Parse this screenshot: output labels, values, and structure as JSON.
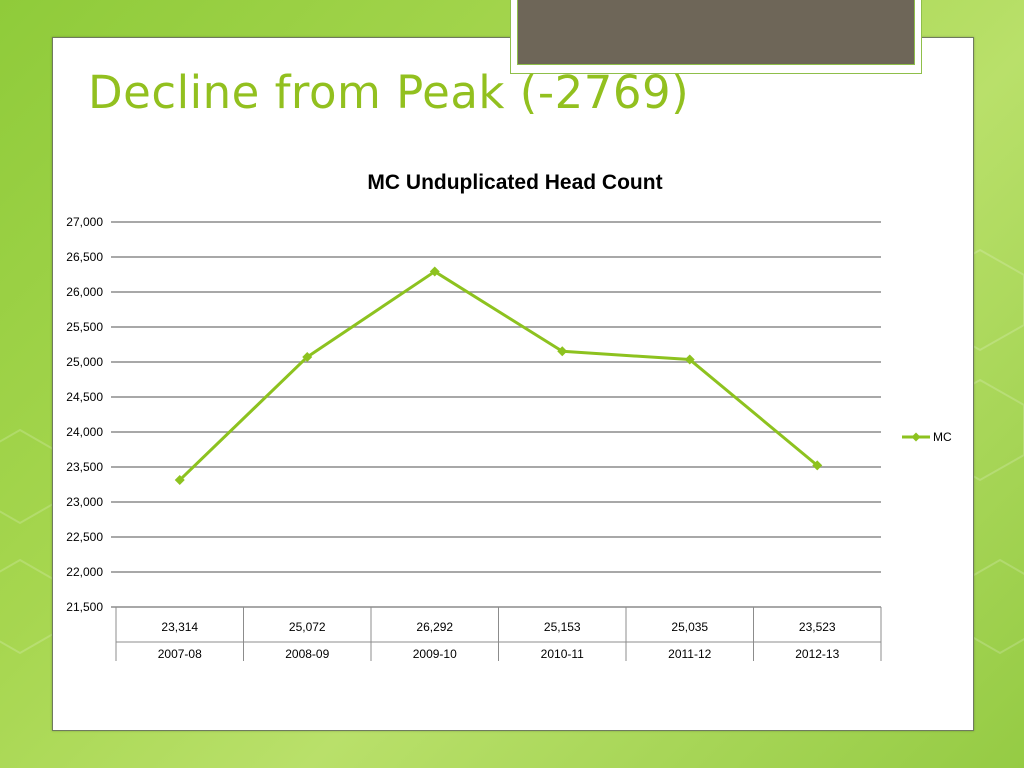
{
  "slide": {
    "title": "Decline from Peak (-2769)"
  },
  "colors": {
    "accent": "#92c01f",
    "series": "#8dc21f",
    "panel_border": "#6f7a60",
    "tab_fill": "#6e6658"
  },
  "chart_data": {
    "type": "line",
    "title": "MC Unduplicated Head Count",
    "categories": [
      "2007-08",
      "2008-09",
      "2009-10",
      "2010-11",
      "2011-12",
      "2012-13"
    ],
    "series": [
      {
        "name": "MC",
        "values": [
          23314,
          25072,
          26292,
          25153,
          25035,
          23523
        ],
        "labels": [
          "23,314",
          "25,072",
          "26,292",
          "25,153",
          "25,035",
          "23,523"
        ],
        "marker": "diamond"
      }
    ],
    "ylim": [
      21500,
      27000
    ],
    "yticks": [
      {
        "value": 21500,
        "label": "21,500"
      },
      {
        "value": 22000,
        "label": "22,000"
      },
      {
        "value": 22500,
        "label": "22,500"
      },
      {
        "value": 23000,
        "label": "23,000"
      },
      {
        "value": 23500,
        "label": "23,500"
      },
      {
        "value": 24000,
        "label": "24,000"
      },
      {
        "value": 24500,
        "label": "24,500"
      },
      {
        "value": 25000,
        "label": "25,000"
      },
      {
        "value": 25500,
        "label": "25,500"
      },
      {
        "value": 26000,
        "label": "26,000"
      },
      {
        "value": 26500,
        "label": "26,500"
      },
      {
        "value": 27000,
        "label": "27,000"
      }
    ],
    "grid": true,
    "legend": "right",
    "data_table": true
  }
}
